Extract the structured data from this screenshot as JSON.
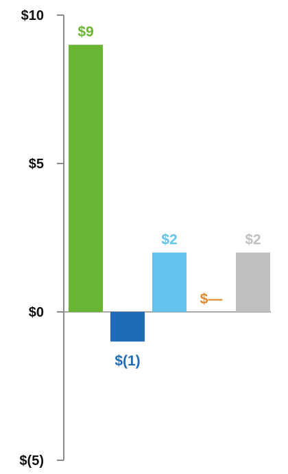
{
  "chart_data": {
    "type": "bar",
    "categories": [
      "",
      "",
      "",
      "",
      ""
    ],
    "values": [
      9,
      -1,
      2,
      0,
      2
    ],
    "data_labels": [
      "$9",
      "$(1)",
      "$2",
      "$—",
      "$2"
    ],
    "colors": [
      "#6ab533",
      "#1f6bb5",
      "#62c3ef",
      "#e08b2a",
      "#bfc0c2"
    ],
    "label_colors": [
      "#6ab533",
      "#1f6bb5",
      "#62c3ef",
      "#e08b2a",
      "#bfc0c2"
    ],
    "y_ticks": [
      10,
      5,
      0,
      -5
    ],
    "y_tick_labels": [
      "$10",
      "$5",
      "$0",
      "$(5)"
    ],
    "ylim": [
      -5,
      10
    ],
    "grid": false,
    "axis_color": "#8a8a8a"
  }
}
